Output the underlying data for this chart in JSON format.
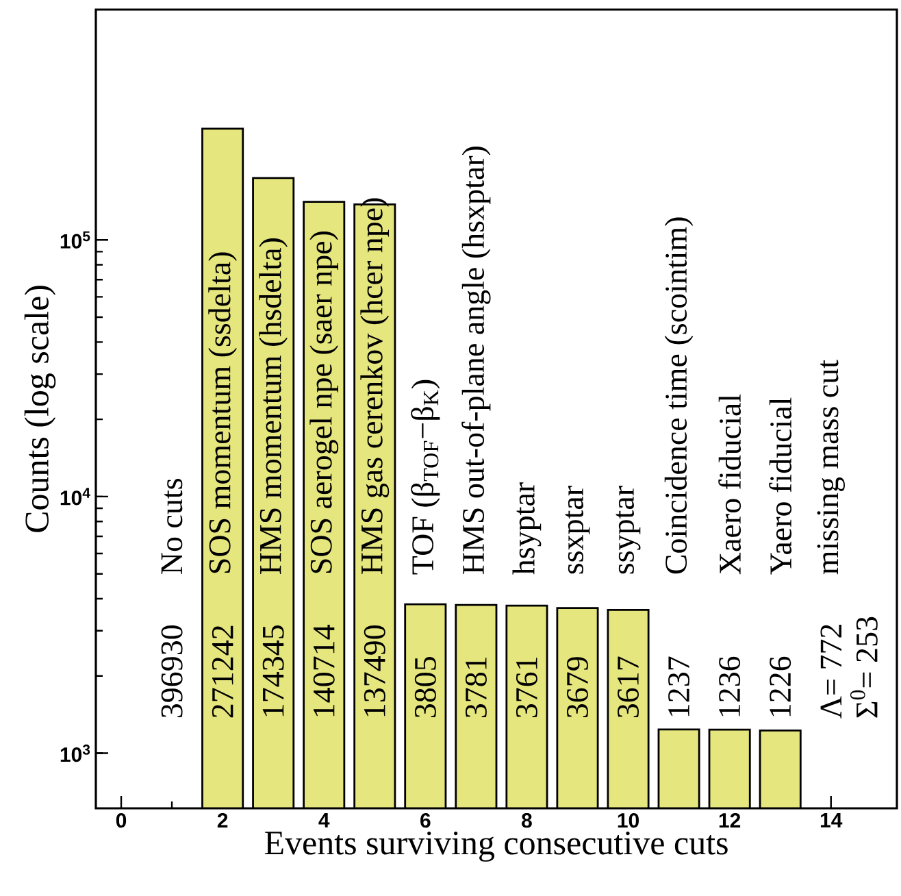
{
  "chart_data": {
    "type": "bar",
    "xlabel": "Events surviving consecutive cuts",
    "ylabel": "Counts (log scale)",
    "x": [
      2,
      3,
      4,
      5,
      6,
      7,
      8,
      9,
      10,
      11,
      12,
      13
    ],
    "values": [
      271242,
      174345,
      140714,
      137490,
      3805,
      3781,
      3761,
      3679,
      3617,
      1237,
      1236,
      1226
    ],
    "data_labels": true,
    "color": "#e6e67e",
    "log": true,
    "xlim": [
      -0.5,
      15.3
    ],
    "xticks": [
      0,
      2,
      4,
      6,
      8,
      10,
      12,
      14
    ],
    "ylim": [
      610,
      790000
    ],
    "yticks": [
      {
        "value": 1000,
        "label": "10$^{3}$"
      },
      {
        "value": 10000,
        "label": "10$^{4}$"
      },
      {
        "value": 100000,
        "label": "10$^{5}$"
      }
    ],
    "annotations": [
      "No cuts",
      "SOS momentum (ssdelta)",
      "HMS momentum (hsdelta)",
      "SOS aerogel npe (saer npe)",
      "HMS gas cerenkov (hcer npe)",
      "TOF (β$_{TOF}$−β$_{K}$)",
      "HMS out-of-plane angle (hsxptar)",
      "hsyptar",
      "ssxptar",
      "ssyptar",
      "Coincidence time (scointim)",
      "Xaero fiducial",
      "Yaero fiducial",
      "missing mass cut",
      "396930",
      "Λ= 772",
      "Σ$^{0}$= 253"
    ]
  }
}
